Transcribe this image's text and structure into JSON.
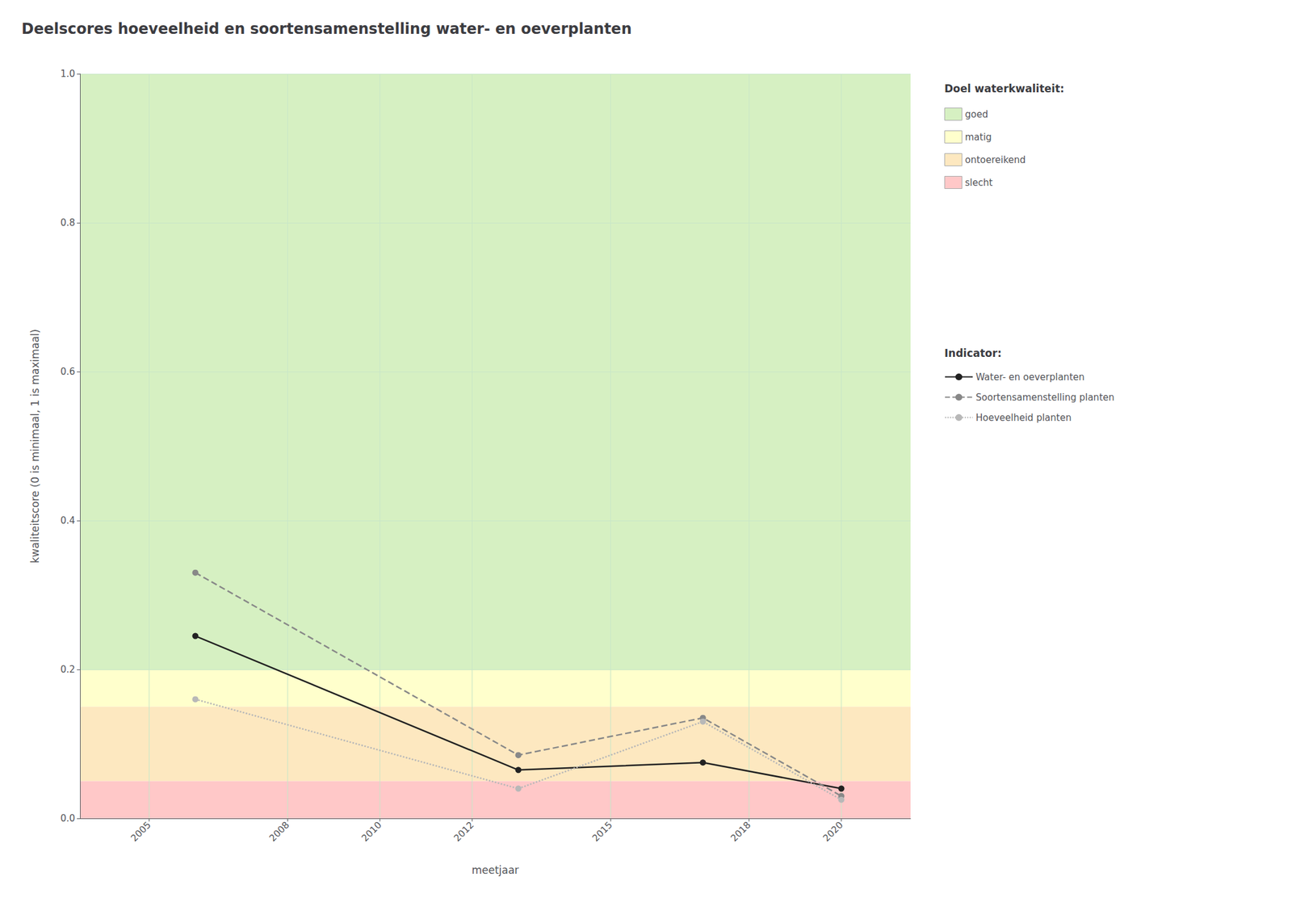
{
  "chart_data": {
    "type": "line",
    "title": "Deelscores hoeveelheid en soortensamenstelling water- en oeverplanten",
    "x_label": "meetjaar",
    "y_label": "kwaliteitscore (0 is minimaal, 1 is maximaal)",
    "xlim": [
      2003.5,
      2021.5
    ],
    "ylim": [
      0.0,
      1.0
    ],
    "xticks": [
      2005,
      2008,
      2010,
      2012,
      2015,
      2018,
      2020
    ],
    "yticks": [
      {
        "value": 0.0,
        "label": "0.0"
      },
      0.2,
      0.4,
      0.6,
      0.8,
      {
        "value": 1.0,
        "label": "1.0"
      }
    ],
    "grid": true,
    "legend": "right",
    "bands_title": "Doel waterkwaliteit:",
    "bands": [
      {
        "name": "goed",
        "ymin": 0.2,
        "ymax": 1.0,
        "color": "#d6f0c2"
      },
      {
        "name": "matig",
        "ymin": 0.15,
        "ymax": 0.2,
        "color": "#ffffcc"
      },
      {
        "name": "ontoereikend",
        "ymin": 0.05,
        "ymax": 0.15,
        "color": "#fde8c0"
      },
      {
        "name": "slecht",
        "ymin": 0.0,
        "ymax": 0.05,
        "color": "#ffc8c8"
      }
    ],
    "legend_title": "Indicator:",
    "series": [
      {
        "name": "Water- en oeverplanten",
        "color": "#222222",
        "line_style": "solid",
        "marker": "circle",
        "x": [
          2006,
          2013,
          2017,
          2020
        ],
        "values": [
          0.245,
          0.065,
          0.075,
          0.04
        ]
      },
      {
        "name": "Soortensamenstelling planten",
        "color": "#888888",
        "line_style": "dashed",
        "marker": "circle",
        "x": [
          2006,
          2013,
          2017,
          2020
        ],
        "values": [
          0.33,
          0.085,
          0.135,
          0.03
        ]
      },
      {
        "name": "Hoeveelheid planten",
        "color": "#b8b8b8",
        "line_style": "dotted",
        "marker": "circle",
        "x": [
          2006,
          2013,
          2017,
          2020
        ],
        "values": [
          0.16,
          0.04,
          0.13,
          0.025
        ]
      }
    ]
  }
}
